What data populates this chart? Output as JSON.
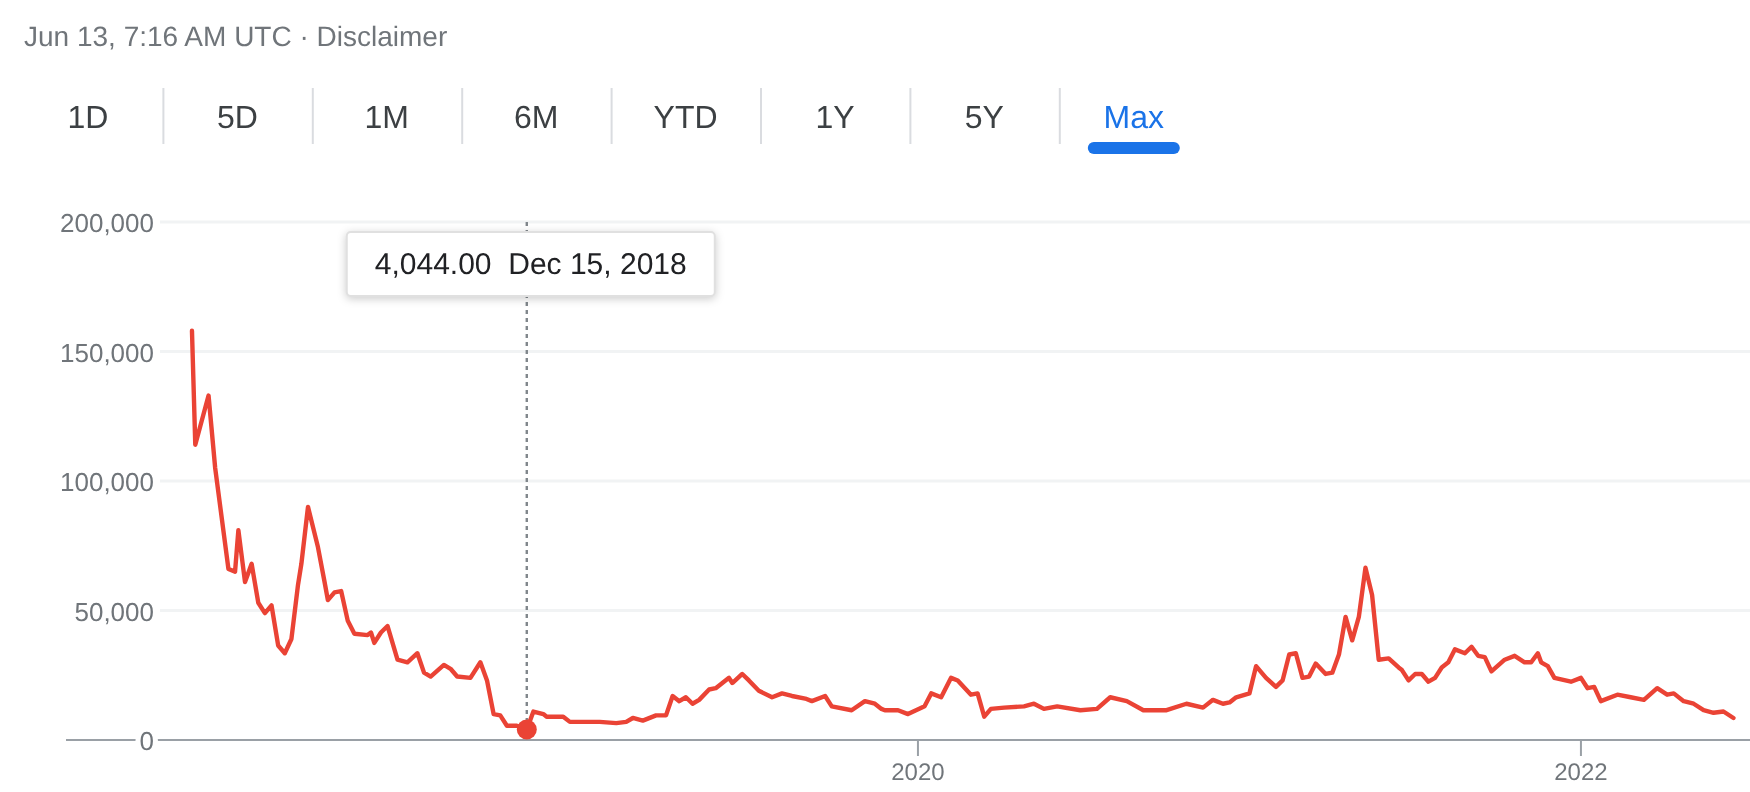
{
  "chart_data": {
    "type": "line",
    "subtitle": "Jun 13, 7:16 AM UTC · Disclaimer",
    "annotations": [
      "1D",
      "5D",
      "1M",
      "6M",
      "YTD",
      "1Y",
      "5Y",
      "Max",
      {
        "text": "4,044.00  Dec 15, 2018",
        "x": 2018.82,
        "y": 4044
      }
    ],
    "xlim": [
      2017.43,
      2022.51
    ],
    "xticks": [
      2020,
      2022
    ],
    "ylim": [
      0,
      200000
    ],
    "yticks": [
      {
        "value": 0,
        "label": "0"
      },
      {
        "value": 50000,
        "label": "50,000"
      },
      {
        "value": 100000,
        "label": "100,000"
      },
      {
        "value": 150000,
        "label": "150,000"
      },
      {
        "value": 200000,
        "label": "200,000"
      }
    ],
    "grid": "y",
    "marker": "none",
    "line_style": "solid",
    "series": [
      {
        "color": "#ea4335",
        "x": [
          2017.81,
          2017.82,
          2017.86,
          2017.88,
          2017.92,
          2017.94,
          2017.95,
          2017.97,
          2017.99,
          2018.01,
          2018.03,
          2018.05,
          2018.07,
          2018.09,
          2018.11,
          2018.13,
          2018.14,
          2018.16,
          2018.19,
          2018.21,
          2018.22,
          2018.24,
          2018.26,
          2018.28,
          2018.3,
          2018.34,
          2018.35,
          2018.36,
          2018.38,
          2018.4,
          2018.43,
          2018.46,
          2018.49,
          2018.51,
          2018.53,
          2018.57,
          2018.59,
          2018.61,
          2018.65,
          2018.68,
          2018.7,
          2018.72,
          2018.74,
          2018.76,
          2018.79,
          2018.82,
          2018.84,
          2018.87,
          2018.88,
          2018.93,
          2018.95,
          2019.04,
          2019.09,
          2019.12,
          2019.14,
          2019.17,
          2019.21,
          2019.24,
          2019.26,
          2019.28,
          2019.3,
          2019.32,
          2019.34,
          2019.37,
          2019.39,
          2019.41,
          2019.43,
          2019.44,
          2019.47,
          2019.49,
          2019.52,
          2019.56,
          2019.59,
          2019.62,
          2019.66,
          2019.68,
          2019.72,
          2019.74,
          2019.8,
          2019.84,
          2019.87,
          2019.89,
          2019.9,
          2019.94,
          2019.97,
          2020.02,
          2020.04,
          2020.07,
          2020.1,
          2020.12,
          2020.16,
          2020.18,
          2020.2,
          2020.22,
          2020.26,
          2020.32,
          2020.35,
          2020.38,
          2020.42,
          2020.49,
          2020.54,
          2020.58,
          2020.63,
          2020.68,
          2020.75,
          2020.81,
          2020.86,
          2020.89,
          2020.92,
          2020.94,
          2020.96,
          2021.0,
          2021.02,
          2021.05,
          2021.08,
          2021.1,
          2021.12,
          2021.14,
          2021.16,
          2021.18,
          2021.2,
          2021.23,
          2021.25,
          2021.27,
          2021.29,
          2021.31,
          2021.33,
          2021.35,
          2021.37,
          2021.39,
          2021.42,
          2021.45,
          2021.46,
          2021.48,
          2021.5,
          2021.52,
          2021.54,
          2021.56,
          2021.58,
          2021.6,
          2021.62,
          2021.65,
          2021.67,
          2021.69,
          2021.71,
          2021.73,
          2021.77,
          2021.8,
          2021.83,
          2021.85,
          2021.87,
          2021.88,
          2021.9,
          2021.92,
          2021.97,
          2022.0,
          2022.02,
          2022.04,
          2022.06,
          2022.11,
          2022.15,
          2022.19,
          2022.23,
          2022.26,
          2022.28,
          2022.31,
          2022.34,
          2022.37,
          2022.4,
          2022.43,
          2022.46
        ],
        "values": [
          158000,
          114000,
          133000,
          105000,
          66000,
          65000,
          81000,
          61000,
          68000,
          53000,
          49000,
          52000,
          36500,
          33500,
          39000,
          60000,
          68000,
          90000,
          74500,
          61000,
          54000,
          57000,
          57500,
          46000,
          41000,
          40500,
          41500,
          37500,
          41500,
          44000,
          31000,
          30000,
          33500,
          26000,
          24500,
          29000,
          27500,
          24500,
          24000,
          30000,
          23000,
          10000,
          9500,
          5500,
          5500,
          4044,
          11000,
          10000,
          9000,
          9000,
          7000,
          7000,
          6500,
          7000,
          8500,
          7500,
          9500,
          9500,
          17000,
          15000,
          16500,
          14000,
          15500,
          19500,
          20000,
          22000,
          24000,
          22000,
          25500,
          23000,
          19000,
          16500,
          18000,
          17000,
          16000,
          15000,
          17000,
          13000,
          11500,
          15000,
          14000,
          12000,
          11500,
          11500,
          10000,
          13000,
          18000,
          16500,
          24000,
          23000,
          17500,
          18000,
          9000,
          12000,
          12500,
          13000,
          14000,
          12000,
          13000,
          11500,
          12000,
          16500,
          15000,
          11500,
          11500,
          14000,
          12500,
          15500,
          14000,
          14500,
          16500,
          18000,
          28500,
          24000,
          20500,
          23000,
          33000,
          33500,
          24000,
          24500,
          29500,
          25500,
          26000,
          33000,
          47500,
          38500,
          47500,
          66500,
          56000,
          31000,
          31500,
          28000,
          27000,
          23000,
          25500,
          25500,
          22500,
          24000,
          28000,
          30000,
          35000,
          33500,
          36000,
          32500,
          32000,
          26500,
          31000,
          32500,
          30000,
          30000,
          33500,
          30000,
          28500,
          24000,
          22500,
          24000,
          20000,
          20500,
          15000,
          17500,
          16500,
          15500,
          20000,
          17500,
          18000,
          15000,
          14000,
          11500,
          10500,
          11000,
          8500
        ]
      }
    ]
  }
}
